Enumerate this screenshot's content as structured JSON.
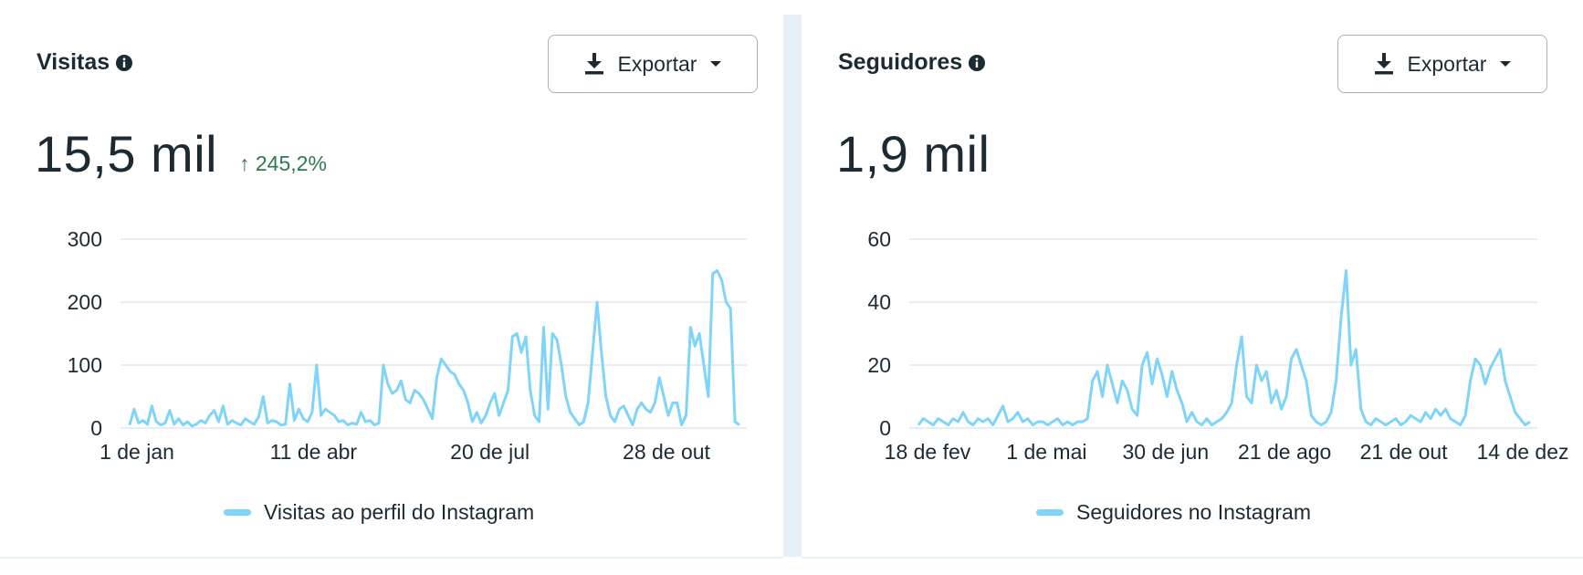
{
  "cards": [
    {
      "title": "Visitas",
      "export_label": "Exportar",
      "value": "15,5 mil",
      "delta": "↑ 245,2%",
      "legend": "Visitas ao perfil do Instagram"
    },
    {
      "title": "Seguidores",
      "export_label": "Exportar",
      "value": "1,9 mil",
      "delta": "",
      "legend": "Seguidores no Instagram"
    }
  ],
  "colors": {
    "line": "#7fd4fa",
    "grid": "#e3e7ea",
    "delta": "#2d7a4f",
    "text": "#1c2b33"
  },
  "icons": {
    "info": "info-circle-icon",
    "download": "download-icon",
    "dropdown": "caret-down-icon"
  },
  "chart_data": [
    {
      "type": "line",
      "title": "",
      "xlabel": "",
      "ylabel": "",
      "ylim": [
        0,
        300
      ],
      "yticks": [
        0,
        100,
        200,
        300
      ],
      "ytick_labels": [
        "0",
        "100",
        "200",
        "300"
      ],
      "xtick_labels": [
        "1 de jan",
        "11 de abr",
        "20 de jul",
        "28 de out"
      ],
      "grid": true,
      "legend_position": "bottom",
      "series": [
        {
          "name": "Visitas ao perfil do Instagram",
          "values": [
            5,
            30,
            8,
            12,
            6,
            35,
            10,
            5,
            8,
            28,
            6,
            15,
            5,
            10,
            3,
            6,
            12,
            8,
            20,
            28,
            10,
            35,
            6,
            12,
            8,
            5,
            15,
            10,
            6,
            18,
            50,
            8,
            12,
            10,
            5,
            6,
            70,
            12,
            30,
            15,
            10,
            25,
            100,
            20,
            30,
            25,
            20,
            10,
            12,
            5,
            8,
            6,
            25,
            10,
            12,
            5,
            8,
            100,
            70,
            55,
            60,
            75,
            45,
            40,
            60,
            55,
            45,
            30,
            15,
            80,
            110,
            100,
            90,
            85,
            70,
            60,
            40,
            10,
            25,
            8,
            20,
            40,
            55,
            20,
            40,
            60,
            145,
            150,
            120,
            145,
            60,
            20,
            10,
            160,
            30,
            150,
            140,
            100,
            50,
            25,
            15,
            5,
            10,
            40,
            120,
            200,
            120,
            50,
            20,
            10,
            30,
            35,
            20,
            5,
            30,
            40,
            30,
            25,
            40,
            80,
            50,
            20,
            40,
            40,
            5,
            20,
            160,
            130,
            150,
            100,
            50,
            245,
            250,
            235,
            200,
            190,
            10,
            5
          ]
        }
      ]
    },
    {
      "type": "line",
      "title": "",
      "xlabel": "",
      "ylabel": "",
      "ylim": [
        0,
        60
      ],
      "yticks": [
        0,
        20,
        40,
        60
      ],
      "ytick_labels": [
        "0",
        "20",
        "40",
        "60"
      ],
      "xtick_labels": [
        "18 de fev",
        "1 de mai",
        "30 de jun",
        "21 de ago",
        "21 de out",
        "14 de dez"
      ],
      "grid": true,
      "legend_position": "bottom",
      "series": [
        {
          "name": "Seguidores no Instagram",
          "values": [
            1,
            3,
            2,
            1,
            3,
            2,
            1,
            3,
            2,
            5,
            2,
            1,
            3,
            2,
            3,
            1,
            4,
            7,
            2,
            3,
            5,
            2,
            3,
            1,
            2,
            2,
            1,
            2,
            3,
            1,
            2,
            1,
            2,
            2,
            3,
            15,
            18,
            10,
            20,
            14,
            8,
            15,
            12,
            6,
            4,
            20,
            24,
            14,
            22,
            17,
            10,
            18,
            12,
            8,
            2,
            5,
            2,
            1,
            3,
            1,
            2,
            3,
            5,
            8,
            20,
            29,
            10,
            8,
            20,
            15,
            18,
            8,
            12,
            6,
            10,
            22,
            25,
            20,
            15,
            4,
            2,
            1,
            2,
            5,
            15,
            35,
            50,
            20,
            25,
            6,
            2,
            1,
            3,
            2,
            1,
            2,
            3,
            1,
            2,
            4,
            3,
            2,
            5,
            3,
            6,
            4,
            6,
            3,
            2,
            1,
            4,
            15,
            22,
            20,
            14,
            19,
            22,
            25,
            15,
            10,
            5,
            3,
            1,
            2
          ]
        }
      ]
    }
  ]
}
